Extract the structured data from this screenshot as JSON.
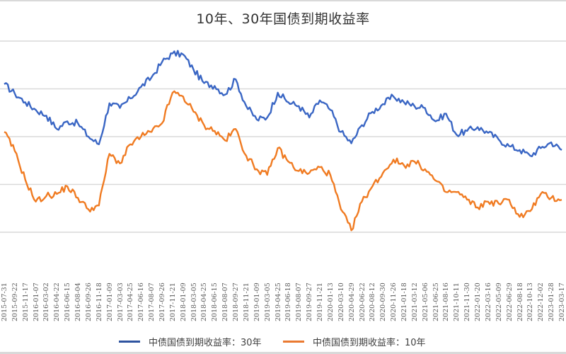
{
  "title": "10年、30年国债到期收益率",
  "colors": {
    "series_30y": "#3a66c4",
    "series_10y": "#f07b22",
    "grid": "#d9d9d9"
  },
  "legend": [
    {
      "label": "中债国债到期收益率：30年",
      "color": "#2f54a0"
    },
    {
      "label": "中债国债到期收益率：10年",
      "color": "#ea7a31"
    }
  ],
  "chart_data": {
    "type": "line",
    "title": "10年、30年国债到期收益率",
    "xlabel": "",
    "ylabel": "",
    "y_tick_labels_visible": false,
    "grid": true,
    "legend_position": "bottom",
    "ylim_estimated": [
      2.5,
      4.5
    ],
    "gridline_values_estimated": [
      4.5,
      4.0,
      3.5,
      3.0,
      2.5
    ],
    "x_tick_labels": [
      "2015-07-31",
      "2015-09-22",
      "2015-11-17",
      "2016-01-07",
      "2016-03-02",
      "2016-04-22",
      "2016-06-15",
      "2016-08-04",
      "2016-09-26",
      "2016-11-18",
      "2017-01-09",
      "2017-03-03",
      "2017-04-25",
      "2017-06-16",
      "2017-08-07",
      "2017-09-26",
      "2017-11-21",
      "2018-01-09",
      "2018-03-05",
      "2018-04-25",
      "2018-06-15",
      "2018-08-07",
      "2018-09-27",
      "2018-11-21",
      "2019-01-09",
      "2019-03-05",
      "2019-04-25",
      "2019-06-18",
      "2019-08-07",
      "2019-09-27",
      "2019-11-21",
      "2020-01-13",
      "2020-03-10",
      "2020-04-29",
      "2020-06-22",
      "2020-08-12",
      "2020-09-30",
      "2020-11-26",
      "2021-01-18",
      "2021-03-12",
      "2021-05-06",
      "2021-06-25",
      "2021-08-16",
      "2021-10-11",
      "2021-11-30",
      "2022-01-20",
      "2022-03-16",
      "2022-05-09",
      "2022-06-29",
      "2022-08-18",
      "2022-10-13",
      "2022-12-02",
      "2023-01-28",
      "2023-03-17"
    ],
    "series": [
      {
        "name": "中债国债到期收益率：30年",
        "color": "#3a66c4",
        "x": [
          "2015-07-31",
          "2015-09-22",
          "2015-11-17",
          "2016-01-07",
          "2016-03-02",
          "2016-04-22",
          "2016-06-15",
          "2016-08-04",
          "2016-09-26",
          "2016-11-18",
          "2017-01-09",
          "2017-03-03",
          "2017-04-25",
          "2017-06-16",
          "2017-08-07",
          "2017-09-26",
          "2017-11-21",
          "2018-01-09",
          "2018-03-05",
          "2018-04-25",
          "2018-06-15",
          "2018-08-07",
          "2018-09-27",
          "2018-11-21",
          "2019-01-09",
          "2019-03-05",
          "2019-04-25",
          "2019-06-18",
          "2019-08-07",
          "2019-09-27",
          "2019-11-21",
          "2020-01-13",
          "2020-03-10",
          "2020-04-29",
          "2020-06-22",
          "2020-08-12",
          "2020-09-30",
          "2020-11-26",
          "2021-01-18",
          "2021-03-12",
          "2021-05-06",
          "2021-06-25",
          "2021-08-16",
          "2021-10-11",
          "2021-11-30",
          "2022-01-20",
          "2022-03-16",
          "2022-05-09",
          "2022-06-29",
          "2022-08-18",
          "2022-10-13",
          "2022-12-02",
          "2023-01-28",
          "2023-03-17"
        ],
        "values": [
          4.05,
          3.95,
          3.86,
          3.78,
          3.72,
          3.58,
          3.66,
          3.64,
          3.5,
          3.42,
          3.85,
          3.8,
          3.9,
          4.02,
          4.12,
          4.28,
          4.37,
          4.36,
          4.2,
          4.06,
          4.03,
          3.94,
          4.1,
          3.82,
          3.68,
          3.7,
          3.96,
          3.86,
          3.82,
          3.7,
          3.88,
          3.78,
          3.55,
          3.43,
          3.62,
          3.76,
          3.84,
          3.92,
          3.86,
          3.82,
          3.8,
          3.66,
          3.74,
          3.52,
          3.56,
          3.6,
          3.54,
          3.47,
          3.4,
          3.36,
          3.3,
          3.38,
          3.44,
          3.36
        ]
      },
      {
        "name": "中债国债到期收益率：10年",
        "color": "#f07b22",
        "x": [
          "2015-07-31",
          "2015-09-22",
          "2015-11-17",
          "2016-01-07",
          "2016-03-02",
          "2016-04-22",
          "2016-06-15",
          "2016-08-04",
          "2016-09-26",
          "2016-11-18",
          "2017-01-09",
          "2017-03-03",
          "2017-04-25",
          "2017-06-16",
          "2017-08-07",
          "2017-09-26",
          "2017-11-21",
          "2018-01-09",
          "2018-03-05",
          "2018-04-25",
          "2018-06-15",
          "2018-08-07",
          "2018-09-27",
          "2018-11-21",
          "2019-01-09",
          "2019-03-05",
          "2019-04-25",
          "2019-06-18",
          "2019-08-07",
          "2019-09-27",
          "2019-11-21",
          "2020-01-13",
          "2020-03-10",
          "2020-04-29",
          "2020-06-22",
          "2020-08-12",
          "2020-09-30",
          "2020-11-26",
          "2021-01-18",
          "2021-03-12",
          "2021-05-06",
          "2021-06-25",
          "2021-08-16",
          "2021-10-11",
          "2021-11-30",
          "2022-01-20",
          "2022-03-16",
          "2022-05-09",
          "2022-06-29",
          "2022-08-18",
          "2022-10-13",
          "2022-12-02",
          "2023-01-28",
          "2023-03-17"
        ],
        "values": [
          3.55,
          3.35,
          3.05,
          2.82,
          2.88,
          2.9,
          2.98,
          2.86,
          2.74,
          2.78,
          3.32,
          3.22,
          3.42,
          3.5,
          3.55,
          3.64,
          3.96,
          3.92,
          3.76,
          3.62,
          3.56,
          3.46,
          3.58,
          3.3,
          3.16,
          3.1,
          3.38,
          3.24,
          3.14,
          3.12,
          3.18,
          3.1,
          2.74,
          2.52,
          2.82,
          2.98,
          3.12,
          3.26,
          3.2,
          3.24,
          3.16,
          3.04,
          2.92,
          2.92,
          2.84,
          2.76,
          2.82,
          2.8,
          2.84,
          2.66,
          2.72,
          2.9,
          2.86,
          2.84
        ]
      }
    ]
  }
}
